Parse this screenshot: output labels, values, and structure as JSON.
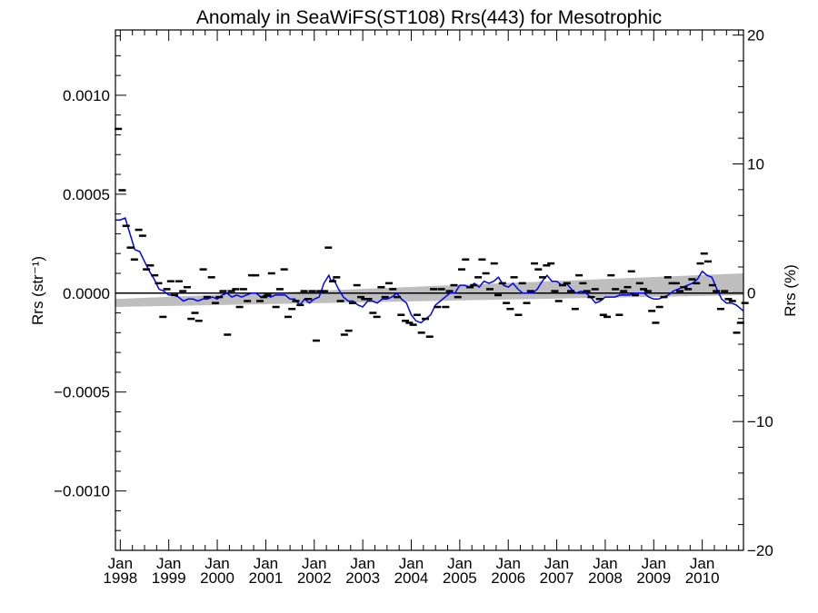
{
  "chart_data": {
    "type": "scatter",
    "title": "Anomaly in SeaWiFS(ST108) Rrs(443) for Mesotrophic",
    "ylabel_left": "Rrs (str⁻¹)",
    "ylabel_right": "Rrs (%)",
    "ylim": [
      -0.0013,
      0.00133
    ],
    "ylim_right": [
      -20,
      20.4
    ],
    "x_range_years": [
      1997.9,
      2010.85
    ],
    "y_ticks": [
      {
        "value": 0.001,
        "label": "0.0010"
      },
      {
        "value": 0.0005,
        "label": "0.0005"
      },
      {
        "value": 0.0,
        "label": "0.0000"
      },
      {
        "value": -0.0005,
        "label": "−0.0005"
      },
      {
        "value": -0.001,
        "label": "−0.0010"
      }
    ],
    "y_right_ticks": [
      {
        "value": 20,
        "label": "20"
      },
      {
        "value": 10,
        "label": "10"
      },
      {
        "value": 0,
        "label": "0"
      },
      {
        "value": -10,
        "label": "−10"
      },
      {
        "value": -20,
        "label": "−20"
      }
    ],
    "x_ticks": [
      {
        "year": 1998,
        "label": "1998",
        "month": "Jan"
      },
      {
        "year": 1999,
        "label": "1999",
        "month": "Jan"
      },
      {
        "year": 2000,
        "label": "2000",
        "month": "Jan"
      },
      {
        "year": 2001,
        "label": "2001",
        "month": "Jan"
      },
      {
        "year": 2002,
        "label": "2002",
        "month": "Jan"
      },
      {
        "year": 2003,
        "label": "2003",
        "month": "Jan"
      },
      {
        "year": 2004,
        "label": "2004",
        "month": "Jan"
      },
      {
        "year": 2005,
        "label": "2005",
        "month": "Jan"
      },
      {
        "year": 2006,
        "label": "2006",
        "month": "Jan"
      },
      {
        "year": 2007,
        "label": "2007",
        "month": "Jan"
      },
      {
        "year": 2008,
        "label": "2008",
        "month": "Jan"
      },
      {
        "year": 2009,
        "label": "2009",
        "month": "Jan"
      },
      {
        "year": 2010,
        "label": "2010",
        "month": "Jan"
      }
    ],
    "trend_band": {
      "start_year": 1997.9,
      "end_year": 2010.85,
      "lower_start": -7e-05,
      "upper_start": -3e-05,
      "lower_end": -1e-05,
      "upper_end": 0.0001
    },
    "zero_line": 0,
    "monthly_anomaly": [
      [
        1997.96,
        0.00083
      ],
      [
        1998.04,
        0.00052
      ],
      [
        1998.12,
        0.00034
      ],
      [
        1998.21,
        0.00023
      ],
      [
        1998.29,
        0.00017
      ],
      [
        1998.38,
        0.00032
      ],
      [
        1998.46,
        0.00029
      ],
      [
        1998.54,
        0.00012
      ],
      [
        1998.62,
        0.00014
      ],
      [
        1998.71,
        9e-05
      ],
      [
        1998.79,
        5e-05
      ],
      [
        1998.88,
        -0.00012
      ],
      [
        1998.96,
        2e-05
      ],
      [
        1999.04,
        6e-05
      ],
      [
        1999.12,
        -1e-05
      ],
      [
        1999.21,
        6e-05
      ],
      [
        1999.29,
        1e-05
      ],
      [
        1999.38,
        3e-05
      ],
      [
        1999.46,
        -0.00013
      ],
      [
        1999.54,
        -0.0001
      ],
      [
        1999.62,
        -0.00014
      ],
      [
        1999.71,
        0.00012
      ],
      [
        1999.79,
        -2e-05
      ],
      [
        1999.88,
        8e-05
      ],
      [
        1999.96,
        -5e-05
      ],
      [
        2000.04,
        -2e-05
      ],
      [
        2000.12,
        1e-05
      ],
      [
        2000.21,
        -0.00021
      ],
      [
        2000.29,
        1e-05
      ],
      [
        2000.38,
        2e-05
      ],
      [
        2000.46,
        -7e-05
      ],
      [
        2000.54,
        2e-05
      ],
      [
        2000.62,
        -4e-05
      ],
      [
        2000.71,
        9e-05
      ],
      [
        2000.79,
        9e-05
      ],
      [
        2000.88,
        -4e-05
      ],
      [
        2000.96,
        -2e-05
      ],
      [
        2001.04,
        -1e-05
      ],
      [
        2001.12,
        0.0001
      ],
      [
        2001.21,
        -7e-05
      ],
      [
        2001.29,
        2e-05
      ],
      [
        2001.38,
        0.00012
      ],
      [
        2001.46,
        -0.00012
      ],
      [
        2001.54,
        -8e-05
      ],
      [
        2001.62,
        -4e-05
      ],
      [
        2001.71,
        -6e-05
      ],
      [
        2001.79,
        1e-05
      ],
      [
        2001.88,
        -3e-05
      ],
      [
        2001.96,
        1e-05
      ],
      [
        2002.04,
        -0.00024
      ],
      [
        2002.12,
        1e-05
      ],
      [
        2002.21,
        1e-05
      ],
      [
        2002.29,
        0.00023
      ],
      [
        2002.38,
        6e-05
      ],
      [
        2002.46,
        8e-05
      ],
      [
        2002.54,
        -4e-05
      ],
      [
        2002.62,
        -0.00021
      ],
      [
        2002.71,
        -0.00019
      ],
      [
        2002.79,
        -5e-05
      ],
      [
        2002.88,
        4e-05
      ],
      [
        2002.96,
        -2e-05
      ],
      [
        2003.04,
        -3e-05
      ],
      [
        2003.12,
        -3e-05
      ],
      [
        2003.21,
        -0.0001
      ],
      [
        2003.29,
        -0.00012
      ],
      [
        2003.38,
        3e-05
      ],
      [
        2003.46,
        -2e-05
      ],
      [
        2003.54,
        5e-05
      ],
      [
        2003.62,
        2e-05
      ],
      [
        2003.71,
        -2e-05
      ],
      [
        2003.79,
        -0.00011
      ],
      [
        2003.88,
        -0.00014
      ],
      [
        2003.96,
        -0.00015
      ],
      [
        2004.04,
        -0.00016
      ],
      [
        2004.12,
        -0.00011
      ],
      [
        2004.21,
        -0.0002
      ],
      [
        2004.29,
        -0.00013
      ],
      [
        2004.38,
        -0.00022
      ],
      [
        2004.46,
        2e-05
      ],
      [
        2004.54,
        -7e-05
      ],
      [
        2004.62,
        2e-05
      ],
      [
        2004.71,
        -7e-05
      ],
      [
        2004.79,
        1e-05
      ],
      [
        2004.88,
        4e-05
      ],
      [
        2004.96,
        -2e-05
      ],
      [
        2005.04,
        0.00012
      ],
      [
        2005.12,
        0.00017
      ],
      [
        2005.21,
        3e-05
      ],
      [
        2005.29,
        4e-05
      ],
      [
        2005.38,
        8e-05
      ],
      [
        2005.46,
        0.00017
      ],
      [
        2005.54,
        0.0001
      ],
      [
        2005.62,
        2e-05
      ],
      [
        2005.71,
        0.00015
      ],
      [
        2005.79,
        -1e-05
      ],
      [
        2005.88,
        5e-05
      ],
      [
        2005.96,
        -5e-05
      ],
      [
        2006.04,
        -8e-05
      ],
      [
        2006.12,
        8e-05
      ],
      [
        2006.21,
        -0.00011
      ],
      [
        2006.29,
        5e-05
      ],
      [
        2006.38,
        -5e-05
      ],
      [
        2006.46,
        1e-05
      ],
      [
        2006.54,
        0.00015
      ],
      [
        2006.62,
        0.00012
      ],
      [
        2006.71,
        8e-05
      ],
      [
        2006.79,
        0.00014
      ],
      [
        2006.88,
        0.00015
      ],
      [
        2006.96,
        1e-05
      ],
      [
        2007.04,
        -4e-05
      ],
      [
        2007.12,
        4e-05
      ],
      [
        2007.21,
        5e-05
      ],
      [
        2007.29,
        1e-05
      ],
      [
        2007.38,
        -8e-05
      ],
      [
        2007.46,
        9e-05
      ],
      [
        2007.54,
        5e-05
      ],
      [
        2007.62,
        1e-05
      ],
      [
        2007.71,
        -2e-05
      ],
      [
        2007.79,
        2e-05
      ],
      [
        2007.88,
        -3e-05
      ],
      [
        2007.96,
        -0.00011
      ],
      [
        2008.04,
        -0.00012
      ],
      [
        2008.12,
        9e-05
      ],
      [
        2008.21,
        2e-05
      ],
      [
        2008.29,
        -0.00011
      ],
      [
        2008.38,
        1e-05
      ],
      [
        2008.46,
        3e-05
      ],
      [
        2008.54,
        0.00011
      ],
      [
        2008.62,
        -1e-05
      ],
      [
        2008.71,
        5e-05
      ],
      [
        2008.79,
        2e-05
      ],
      [
        2008.88,
        1e-05
      ],
      [
        2008.96,
        -9e-05
      ],
      [
        2009.04,
        -0.00015
      ],
      [
        2009.12,
        -7e-05
      ],
      [
        2009.21,
        -2e-05
      ],
      [
        2009.29,
        8e-05
      ],
      [
        2009.38,
        5e-05
      ],
      [
        2009.46,
        5e-05
      ],
      [
        2009.54,
        1e-05
      ],
      [
        2009.62,
        3e-05
      ],
      [
        2009.71,
        2e-05
      ],
      [
        2009.79,
        7e-05
      ],
      [
        2009.88,
        5e-05
      ],
      [
        2009.96,
        0.00015
      ],
      [
        2010.04,
        0.0002
      ],
      [
        2010.12,
        0.00016
      ],
      [
        2010.21,
        4e-05
      ],
      [
        2010.29,
        1e-05
      ],
      [
        2010.38,
        -8e-05
      ],
      [
        2010.46,
        1e-05
      ],
      [
        2010.54,
        -3e-05
      ],
      [
        2010.62,
        -4e-05
      ],
      [
        2010.71,
        -0.0002
      ],
      [
        2010.79,
        -0.00015
      ],
      [
        2010.88,
        -5e-05
      ]
    ],
    "running_mean": [
      [
        1997.9,
        0.00037
      ],
      [
        1998.0,
        0.00037
      ],
      [
        1998.1,
        0.00038
      ],
      [
        1998.2,
        0.0003
      ],
      [
        1998.3,
        0.00022
      ],
      [
        1998.4,
        0.00021
      ],
      [
        1998.5,
        0.00016
      ],
      [
        1998.6,
        0.00011
      ],
      [
        1998.7,
        7e-05
      ],
      [
        1998.8,
        2e-05
      ],
      [
        1998.9,
        1e-05
      ],
      [
        1999.0,
        -1e-05
      ],
      [
        1999.1,
        -1e-05
      ],
      [
        1999.2,
        -2e-05
      ],
      [
        1999.3,
        -4e-05
      ],
      [
        1999.4,
        -3e-05
      ],
      [
        1999.5,
        -3e-05
      ],
      [
        1999.6,
        -4e-05
      ],
      [
        1999.7,
        -3e-05
      ],
      [
        1999.8,
        -3e-05
      ],
      [
        1999.9,
        -2e-05
      ],
      [
        2000.0,
        -3e-05
      ],
      [
        2000.1,
        -1e-05
      ],
      [
        2000.2,
        0.0
      ],
      [
        2000.3,
        -2e-05
      ],
      [
        2000.4,
        -1e-05
      ],
      [
        2000.5,
        -2e-05
      ],
      [
        2000.6,
        -1e-05
      ],
      [
        2000.7,
        0.0
      ],
      [
        2000.8,
        0.0
      ],
      [
        2000.9,
        -2e-05
      ],
      [
        2001.0,
        -1e-05
      ],
      [
        2001.1,
        -2e-05
      ],
      [
        2001.2,
        -1e-05
      ],
      [
        2001.3,
        -1e-05
      ],
      [
        2001.4,
        -1e-05
      ],
      [
        2001.5,
        -3e-05
      ],
      [
        2001.6,
        -3e-05
      ],
      [
        2001.7,
        -6e-05
      ],
      [
        2001.8,
        -3e-05
      ],
      [
        2001.9,
        -5e-05
      ],
      [
        2002.0,
        -3e-05
      ],
      [
        2002.1,
        -2e-05
      ],
      [
        2002.2,
        5e-05
      ],
      [
        2002.3,
        9e-05
      ],
      [
        2002.35,
        6e-05
      ],
      [
        2002.4,
        7e-05
      ],
      [
        2002.5,
        2e-05
      ],
      [
        2002.6,
        -2e-05
      ],
      [
        2002.7,
        -4e-05
      ],
      [
        2002.8,
        -4e-05
      ],
      [
        2002.9,
        -6e-05
      ],
      [
        2003.0,
        -7e-05
      ],
      [
        2003.1,
        -4e-05
      ],
      [
        2003.2,
        -4e-05
      ],
      [
        2003.3,
        -5e-05
      ],
      [
        2003.4,
        -3e-05
      ],
      [
        2003.5,
        -3e-05
      ],
      [
        2003.6,
        -2e-05
      ],
      [
        2003.7,
        0.0
      ],
      [
        2003.8,
        -3e-05
      ],
      [
        2003.9,
        -5e-05
      ],
      [
        2004.0,
        -0.00011
      ],
      [
        2004.1,
        -0.00014
      ],
      [
        2004.2,
        -0.00015
      ],
      [
        2004.3,
        -0.00013
      ],
      [
        2004.4,
        -0.00011
      ],
      [
        2004.5,
        -6e-05
      ],
      [
        2004.6,
        -4e-05
      ],
      [
        2004.7,
        -2e-05
      ],
      [
        2004.8,
        0.0
      ],
      [
        2004.9,
        0.0
      ],
      [
        2005.0,
        4e-05
      ],
      [
        2005.1,
        4e-05
      ],
      [
        2005.2,
        3e-05
      ],
      [
        2005.3,
        5e-05
      ],
      [
        2005.4,
        3e-05
      ],
      [
        2005.5,
        6e-05
      ],
      [
        2005.6,
        5e-05
      ],
      [
        2005.7,
        6e-05
      ],
      [
        2005.8,
        8e-05
      ],
      [
        2005.9,
        4e-05
      ],
      [
        2006.0,
        3e-05
      ],
      [
        2006.1,
        5e-05
      ],
      [
        2006.2,
        2e-05
      ],
      [
        2006.3,
        0.0
      ],
      [
        2006.4,
        0.0
      ],
      [
        2006.5,
        0.0
      ],
      [
        2006.6,
        2e-05
      ],
      [
        2006.7,
        6e-05
      ],
      [
        2006.8,
        9e-05
      ],
      [
        2006.9,
        6e-05
      ],
      [
        2007.0,
        6e-05
      ],
      [
        2007.1,
        4e-05
      ],
      [
        2007.2,
        5e-05
      ],
      [
        2007.3,
        2e-05
      ],
      [
        2007.4,
        0.0
      ],
      [
        2007.5,
        1e-05
      ],
      [
        2007.6,
        0.0
      ],
      [
        2007.7,
        -2e-05
      ],
      [
        2007.8,
        -5e-05
      ],
      [
        2007.9,
        -4e-05
      ],
      [
        2008.0,
        -2e-05
      ],
      [
        2008.1,
        -2e-05
      ],
      [
        2008.2,
        -2e-05
      ],
      [
        2008.3,
        -1e-05
      ],
      [
        2008.4,
        -1e-05
      ],
      [
        2008.5,
        -1e-05
      ],
      [
        2008.6,
        0.0
      ],
      [
        2008.7,
        0.0
      ],
      [
        2008.8,
        0.0
      ],
      [
        2008.9,
        -2e-05
      ],
      [
        2009.0,
        -3e-05
      ],
      [
        2009.1,
        -3e-05
      ],
      [
        2009.2,
        -2e-05
      ],
      [
        2009.3,
        -1e-05
      ],
      [
        2009.4,
        1e-05
      ],
      [
        2009.5,
        2e-05
      ],
      [
        2009.6,
        3e-05
      ],
      [
        2009.7,
        4e-05
      ],
      [
        2009.8,
        5e-05
      ],
      [
        2009.9,
        7e-05
      ],
      [
        2010.0,
        0.00011
      ],
      [
        2010.1,
        9e-05
      ],
      [
        2010.2,
        8e-05
      ],
      [
        2010.3,
        2e-05
      ],
      [
        2010.4,
        -3e-05
      ],
      [
        2010.5,
        -5e-05
      ],
      [
        2010.6,
        -5e-05
      ],
      [
        2010.7,
        -6e-05
      ],
      [
        2010.8,
        -8e-05
      ],
      [
        2010.85,
        -9e-05
      ]
    ],
    "colors": {
      "running_mean": "#0000ff",
      "band": "#bebebe",
      "points": "#000000",
      "axes": "#000000"
    }
  }
}
